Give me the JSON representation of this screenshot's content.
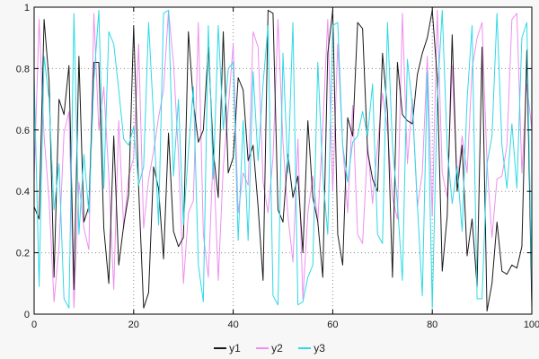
{
  "figure": {
    "background": "#f7f7f7",
    "plot_background": "#ffffff",
    "border_color": "#000000",
    "grid_color": "#8a8a8a"
  },
  "chart_data": {
    "type": "line",
    "title": "",
    "xlabel": "",
    "ylabel": "",
    "xlim": [
      0,
      100
    ],
    "ylim": [
      0,
      1
    ],
    "grid": "dotted major gridlines",
    "legend_position": "bottom-center",
    "xticks": {
      "values": [
        0,
        20,
        40,
        60,
        80,
        100
      ],
      "labels": [
        "0",
        "20",
        "40",
        "60",
        "80",
        "100"
      ]
    },
    "yticks": {
      "values": [
        0,
        0.2,
        0.4,
        0.6,
        0.8,
        1
      ],
      "labels": [
        "0",
        "0.2",
        "0.4",
        "0.6",
        "0.8",
        "1"
      ]
    },
    "x": [
      0,
      1,
      2,
      3,
      4,
      5,
      6,
      7,
      8,
      9,
      10,
      11,
      12,
      13,
      14,
      15,
      16,
      17,
      18,
      19,
      20,
      21,
      22,
      23,
      24,
      25,
      26,
      27,
      28,
      29,
      30,
      31,
      32,
      33,
      34,
      35,
      36,
      37,
      38,
      39,
      40,
      41,
      42,
      43,
      44,
      45,
      46,
      47,
      48,
      49,
      50,
      51,
      52,
      53,
      54,
      55,
      56,
      57,
      58,
      59,
      60,
      61,
      62,
      63,
      64,
      65,
      66,
      67,
      68,
      69,
      70,
      71,
      72,
      73,
      74,
      75,
      76,
      77,
      78,
      79,
      80,
      81,
      82,
      83,
      84,
      85,
      86,
      87,
      88,
      89,
      90,
      91,
      92,
      93,
      94,
      95,
      96,
      97,
      98,
      99,
      100
    ],
    "series": [
      {
        "name": "y1",
        "color": "#1a1a1a",
        "values": [
          0.35,
          0.31,
          0.96,
          0.76,
          0.12,
          0.7,
          0.65,
          0.81,
          0.08,
          0.84,
          0.3,
          0.35,
          0.82,
          0.82,
          0.28,
          0.1,
          0.58,
          0.16,
          0.29,
          0.39,
          0.94,
          0.41,
          0.02,
          0.07,
          0.48,
          0.41,
          0.18,
          0.59,
          0.27,
          0.22,
          0.25,
          0.92,
          0.69,
          0.56,
          0.6,
          0.87,
          0.53,
          0.38,
          0.92,
          0.46,
          0.51,
          0.77,
          0.73,
          0.5,
          0.55,
          0.35,
          0.11,
          0.99,
          0.98,
          0.34,
          0.3,
          0.52,
          0.38,
          0.45,
          0.2,
          0.63,
          0.38,
          0.3,
          0.12,
          0.85,
          0.99,
          0.26,
          0.16,
          0.64,
          0.58,
          0.95,
          0.93,
          0.53,
          0.44,
          0.4,
          0.85,
          0.66,
          0.12,
          0.82,
          0.65,
          0.63,
          0.62,
          0.78,
          0.85,
          0.9,
          0.99,
          0.77,
          0.14,
          0.32,
          0.91,
          0.4,
          0.55,
          0.19,
          0.31,
          0.09,
          0.87,
          0.01,
          0.1,
          0.3,
          0.14,
          0.13,
          0.16,
          0.15,
          0.22,
          0.86,
          0.02
        ]
      },
      {
        "name": "y2",
        "color": "#ee8fee",
        "values": [
          0.44,
          0.96,
          0.58,
          0.37,
          0.04,
          0.22,
          0.59,
          0.66,
          0.02,
          0.43,
          0.28,
          0.21,
          0.98,
          0.6,
          0.74,
          0.45,
          0.08,
          0.63,
          0.28,
          0.45,
          0.51,
          0.88,
          0.28,
          0.44,
          0.53,
          0.64,
          0.73,
          0.99,
          0.82,
          0.52,
          0.1,
          0.33,
          0.37,
          0.95,
          0.26,
          0.12,
          0.53,
          0.11,
          0.48,
          0.67,
          0.88,
          0.33,
          0.46,
          0.42,
          0.92,
          0.87,
          0.43,
          0.33,
          0.51,
          0.96,
          0.56,
          0.32,
          0.17,
          0.57,
          0.05,
          0.33,
          0.45,
          0.3,
          0.61,
          0.96,
          0.4,
          0.88,
          0.55,
          0.33,
          0.68,
          0.26,
          0.23,
          0.55,
          0.36,
          0.55,
          0.72,
          0.6,
          0.38,
          0.31,
          0.98,
          0.49,
          0.7,
          0.35,
          0.46,
          0.84,
          0.32,
          0.99,
          0.46,
          0.38,
          0.81,
          0.42,
          0.58,
          0.46,
          0.8,
          0.9,
          0.95,
          0.49,
          0.25,
          0.44,
          0.45,
          0.55,
          0.96,
          0.98,
          0.46,
          0.75,
          0.6
        ]
      },
      {
        "name": "y3",
        "color": "#2fd9e6",
        "values": [
          0.78,
          0.09,
          0.84,
          0.7,
          0.34,
          0.49,
          0.05,
          0.02,
          0.98,
          0.26,
          0.52,
          0.33,
          0.76,
          0.99,
          0.41,
          0.92,
          0.88,
          0.73,
          0.57,
          0.55,
          0.61,
          0.42,
          0.48,
          0.95,
          0.64,
          0.29,
          0.98,
          0.99,
          0.45,
          0.7,
          0.29,
          0.53,
          0.74,
          0.16,
          0.04,
          0.94,
          0.44,
          0.94,
          0.6,
          0.8,
          0.82,
          0.24,
          0.63,
          0.24,
          0.79,
          0.5,
          0.75,
          0.94,
          0.06,
          0.03,
          0.85,
          0.46,
          0.95,
          0.03,
          0.04,
          0.12,
          0.16,
          0.82,
          0.45,
          0.26,
          0.94,
          0.95,
          0.55,
          0.43,
          0.56,
          0.58,
          0.66,
          0.58,
          0.75,
          0.26,
          0.23,
          0.95,
          0.55,
          0.36,
          0.11,
          0.83,
          0.68,
          0.36,
          0.06,
          0.79,
          0.02,
          0.7,
          0.99,
          0.54,
          0.36,
          0.48,
          0.27,
          0.7,
          0.94,
          0.05,
          0.05,
          0.49,
          0.58,
          0.98,
          0.55,
          0.41,
          0.62,
          0.41,
          0.9,
          0.95,
          0.08
        ]
      }
    ]
  },
  "legend": {
    "items": [
      {
        "label": "y1"
      },
      {
        "label": "y2"
      },
      {
        "label": "y3"
      }
    ]
  }
}
